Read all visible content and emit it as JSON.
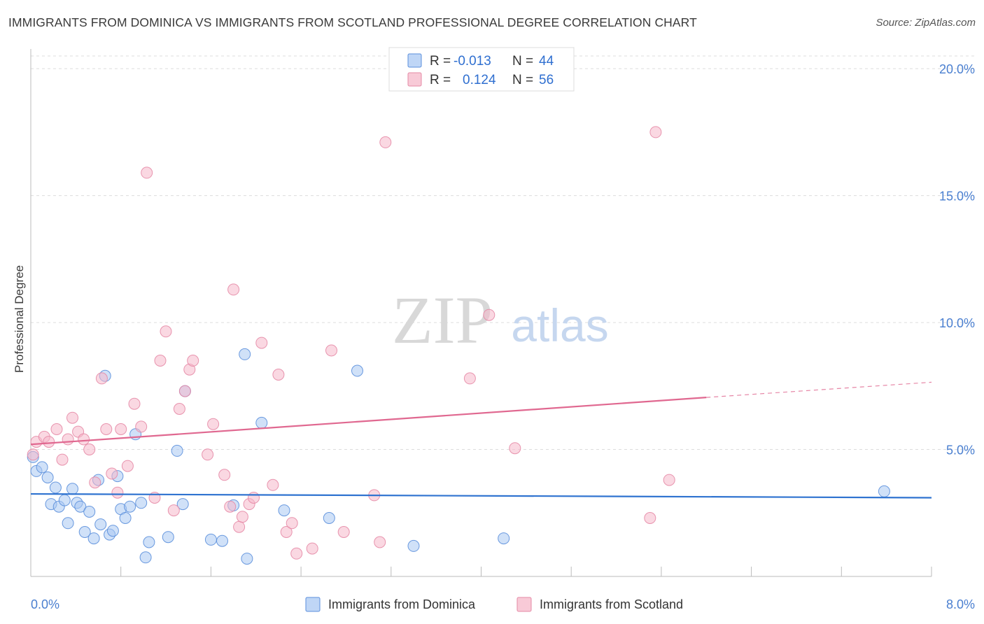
{
  "title": "IMMIGRANTS FROM DOMINICA VS IMMIGRANTS FROM SCOTLAND PROFESSIONAL DEGREE CORRELATION CHART",
  "source": "Source: ZipAtlas.com",
  "watermark": {
    "zip": "ZIP",
    "atlas": "atlas"
  },
  "colors": {
    "dominica_fill": "#a9c8f3",
    "dominica_stroke": "#5b8fdc",
    "dominica_line": "#2f73d0",
    "scotland_fill": "#f6b8ca",
    "scotland_stroke": "#e58aa6",
    "scotland_line": "#e06890",
    "tick_label": "#4a7fd0",
    "grid": "#dddddd"
  },
  "legend": {
    "rows": [
      {
        "r_label": "R =",
        "r_value": "-0.013",
        "n_label": "N =",
        "n_value": "44"
      },
      {
        "r_label": "R =",
        "r_value": "0.124",
        "n_label": "N =",
        "n_value": "56"
      }
    ]
  },
  "bottom_legend": [
    "Immigrants from Dominica",
    "Immigrants from Scotland"
  ],
  "chart_data": {
    "type": "scatter",
    "ylabel": "Professional Degree",
    "xlabel": "",
    "xlim": [
      0,
      8
    ],
    "ylim": [
      0,
      20.5
    ],
    "x_tick_labels": [
      "0.0%",
      "8.0%"
    ],
    "y_ticks": [
      5,
      10,
      15,
      20
    ],
    "y_tick_labels": [
      "5.0%",
      "10.0%",
      "15.0%",
      "20.0%"
    ],
    "grid": "horizontal dashed",
    "legend_position": "top-center",
    "series": [
      {
        "name": "Immigrants from Dominica",
        "R": -0.013,
        "N": 44,
        "trend": {
          "x0": 0,
          "y0": 3.25,
          "x1": 8,
          "y1": 3.1
        },
        "points": [
          [
            0.02,
            4.7
          ],
          [
            0.05,
            4.15
          ],
          [
            0.1,
            4.3
          ],
          [
            0.15,
            3.9
          ],
          [
            0.22,
            3.5
          ],
          [
            0.18,
            2.85
          ],
          [
            0.25,
            2.75
          ],
          [
            0.3,
            3.0
          ],
          [
            0.33,
            2.1
          ],
          [
            0.37,
            3.45
          ],
          [
            0.41,
            2.9
          ],
          [
            0.44,
            2.75
          ],
          [
            0.48,
            1.75
          ],
          [
            0.52,
            2.55
          ],
          [
            0.56,
            1.5
          ],
          [
            0.6,
            3.8
          ],
          [
            0.62,
            2.05
          ],
          [
            0.66,
            7.9
          ],
          [
            0.7,
            1.65
          ],
          [
            0.73,
            1.8
          ],
          [
            0.77,
            3.95
          ],
          [
            0.8,
            2.65
          ],
          [
            0.84,
            2.3
          ],
          [
            0.88,
            2.75
          ],
          [
            0.93,
            5.6
          ],
          [
            0.98,
            2.9
          ],
          [
            1.02,
            0.75
          ],
          [
            1.05,
            1.35
          ],
          [
            1.22,
            1.55
          ],
          [
            1.3,
            4.95
          ],
          [
            1.35,
            2.85
          ],
          [
            1.37,
            7.3
          ],
          [
            1.6,
            1.45
          ],
          [
            1.7,
            1.4
          ],
          [
            1.8,
            2.8
          ],
          [
            1.9,
            8.75
          ],
          [
            1.92,
            0.7
          ],
          [
            2.05,
            6.05
          ],
          [
            2.25,
            2.6
          ],
          [
            2.65,
            2.3
          ],
          [
            2.9,
            8.1
          ],
          [
            3.4,
            1.2
          ],
          [
            4.2,
            1.5
          ],
          [
            7.58,
            3.35
          ]
        ]
      },
      {
        "name": "Immigrants from Scotland",
        "R": 0.124,
        "N": 56,
        "trend": {
          "x0": 0,
          "y0": 5.2,
          "x1": 6.0,
          "y1": 7.05,
          "dash_x1": 8,
          "dash_y1": 7.65
        },
        "points": [
          [
            0.02,
            4.8
          ],
          [
            0.05,
            5.3
          ],
          [
            0.12,
            5.5
          ],
          [
            0.16,
            5.3
          ],
          [
            0.23,
            5.8
          ],
          [
            0.28,
            4.6
          ],
          [
            0.33,
            5.4
          ],
          [
            0.37,
            6.25
          ],
          [
            0.42,
            5.7
          ],
          [
            0.47,
            5.4
          ],
          [
            0.52,
            5.0
          ],
          [
            0.57,
            3.7
          ],
          [
            0.63,
            7.8
          ],
          [
            0.67,
            5.8
          ],
          [
            0.72,
            4.05
          ],
          [
            0.77,
            3.3
          ],
          [
            0.8,
            5.8
          ],
          [
            0.86,
            4.35
          ],
          [
            0.92,
            6.8
          ],
          [
            0.98,
            5.9
          ],
          [
            1.03,
            15.9
          ],
          [
            1.1,
            3.1
          ],
          [
            1.15,
            8.5
          ],
          [
            1.2,
            9.65
          ],
          [
            1.27,
            2.6
          ],
          [
            1.32,
            6.6
          ],
          [
            1.37,
            7.3
          ],
          [
            1.41,
            8.15
          ],
          [
            1.44,
            8.5
          ],
          [
            1.57,
            4.8
          ],
          [
            1.62,
            6.0
          ],
          [
            1.72,
            4.0
          ],
          [
            1.77,
            2.75
          ],
          [
            1.8,
            11.3
          ],
          [
            1.85,
            1.95
          ],
          [
            1.88,
            2.35
          ],
          [
            1.94,
            2.85
          ],
          [
            1.98,
            3.1
          ],
          [
            2.05,
            9.2
          ],
          [
            2.15,
            3.6
          ],
          [
            2.2,
            7.95
          ],
          [
            2.27,
            1.75
          ],
          [
            2.32,
            2.1
          ],
          [
            2.36,
            0.9
          ],
          [
            2.5,
            1.1
          ],
          [
            2.67,
            8.9
          ],
          [
            2.78,
            1.75
          ],
          [
            3.05,
            3.2
          ],
          [
            3.1,
            1.35
          ],
          [
            3.15,
            17.1
          ],
          [
            3.9,
            7.8
          ],
          [
            4.07,
            10.3
          ],
          [
            4.3,
            5.05
          ],
          [
            5.5,
            2.3
          ],
          [
            5.55,
            17.5
          ],
          [
            5.67,
            3.8
          ]
        ]
      }
    ]
  }
}
